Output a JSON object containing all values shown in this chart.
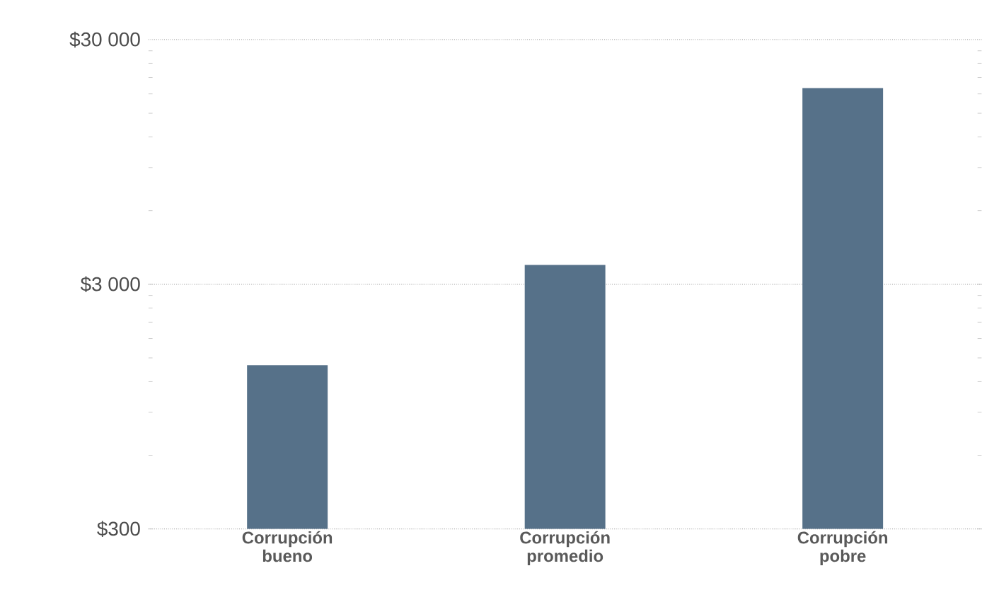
{
  "chart_data": {
    "type": "bar",
    "categories": [
      "Corrupción bueno",
      "Corrupción promedio",
      "Corrupción pobre"
    ],
    "values": [
      1400,
      3600,
      19000
    ],
    "color": "#567189",
    "log": "y",
    "ylim": [
      300,
      30000
    ],
    "yticks": [
      {
        "value": 300,
        "label": "$300"
      },
      {
        "value": 3000,
        "label": "$3 000"
      },
      {
        "value": 30000,
        "label": "$30 000"
      }
    ],
    "grid": "y"
  }
}
